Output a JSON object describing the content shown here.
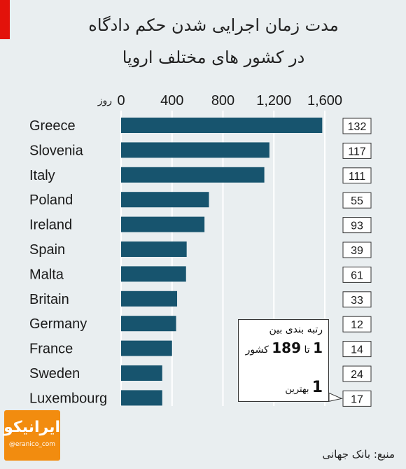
{
  "header": {
    "title_line1": "مدت زمان اجرایی شدن حکم دادگاه",
    "title_line2": "در کشور های مختلف اروپا"
  },
  "chart_data": {
    "type": "bar",
    "orientation": "horizontal",
    "unit": "روز",
    "categories": [
      "Greece",
      "Slovenia",
      "Italy",
      "Poland",
      "Ireland",
      "Spain",
      "Malta",
      "Britain",
      "Germany",
      "France",
      "Sweden",
      "Luxembourg"
    ],
    "values": [
      1580,
      1165,
      1125,
      690,
      655,
      515,
      510,
      440,
      432,
      400,
      323,
      323
    ],
    "ranks": [
      132,
      117,
      111,
      55,
      93,
      39,
      61,
      33,
      12,
      14,
      24,
      17
    ],
    "xlim": [
      0,
      1700
    ],
    "x_ticks": [
      0,
      400,
      800,
      1200,
      1600
    ],
    "x_tick_labels": [
      "0",
      "400",
      "800",
      "1,200",
      "1,600"
    ],
    "grid": true,
    "colors": {
      "bar": "#17546e",
      "grid": "#ffffff",
      "background": "#e9eef0",
      "accent": "#e3120b"
    }
  },
  "callout": {
    "line1": "رتبه بندی بین",
    "line2_pre": "1",
    "line2_mid": "تا",
    "line2_num": "189",
    "line2_post": "کشور",
    "line3_num": "1",
    "line3_text": "بهترین"
  },
  "logo": {
    "mark": "ایرانیکو",
    "handle": "@eranico_com"
  },
  "source": "منبع: بانک جهانی"
}
